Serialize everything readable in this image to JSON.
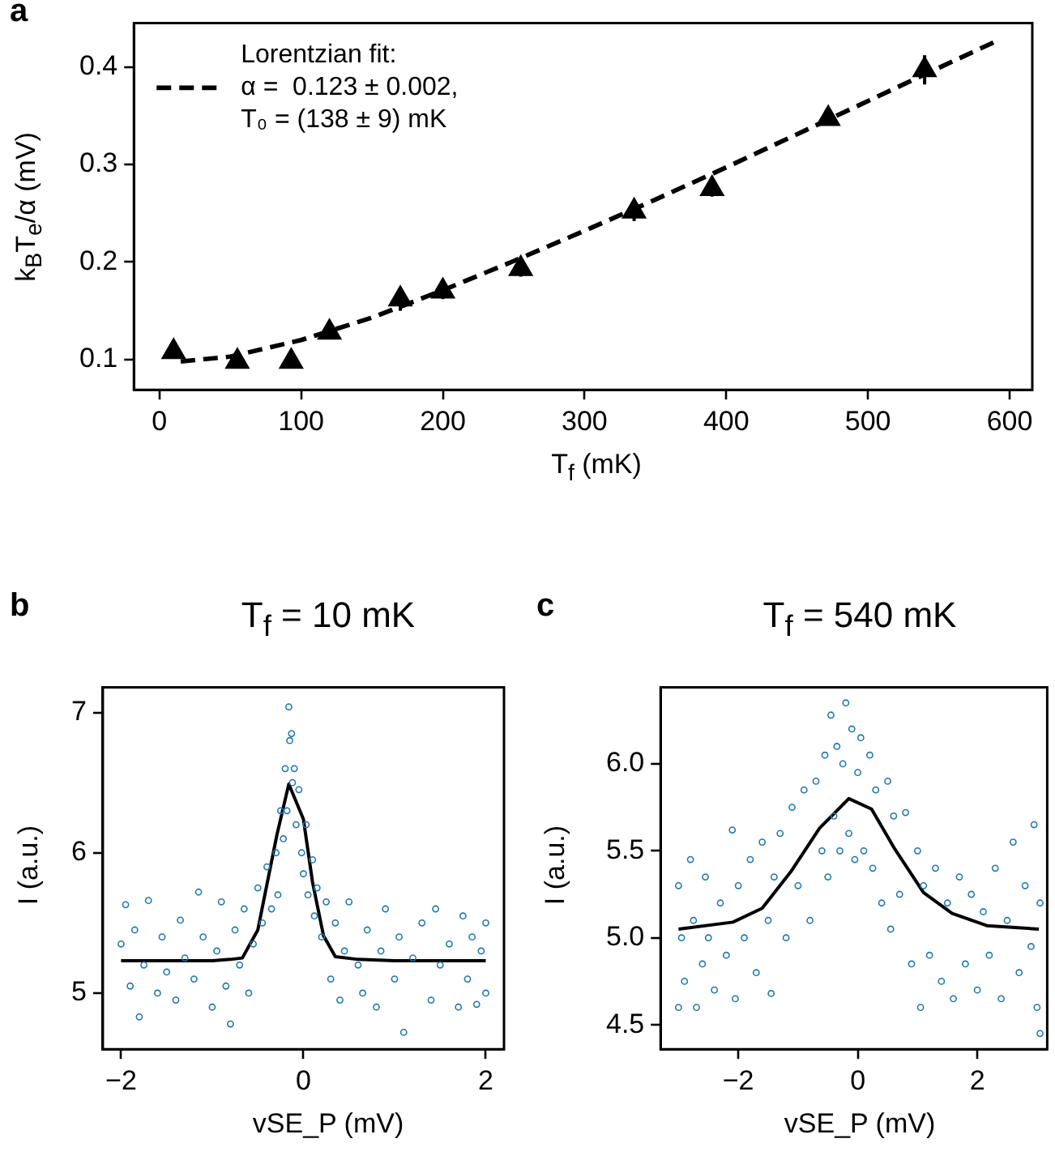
{
  "chart_data": [
    {
      "type": "scatter",
      "annotations": [
        "a"
      ],
      "xlabel": "T$_{f}$ (mK)",
      "ylabel": "k$_{B}$T$_{e}$/α (mV)",
      "xlim": [
        -18,
        616
      ],
      "ylim": [
        0.069,
        0.445
      ],
      "xticks": [
        0,
        100,
        200,
        300,
        400,
        500,
        600
      ],
      "yticks": [
        0.1,
        0.2,
        0.3,
        0.4
      ],
      "grid": false,
      "legend": "top left",
      "series": [
        {
          "type": "scatter",
          "color": "#000000",
          "marker": "triangle",
          "x": [
            10,
            55,
            93,
            120,
            170,
            200,
            255,
            335,
            390,
            472,
            540
          ],
          "values": [
            0.108,
            0.098,
            0.098,
            0.128,
            0.162,
            0.17,
            0.193,
            0.252,
            0.275,
            0.347,
            0.397
          ],
          "errors": [
            0.005,
            0.004,
            0.004,
            0.005,
            0.012,
            0.008,
            0.008,
            0.01,
            0.008,
            0.006,
            0.015
          ]
        },
        {
          "type": "line",
          "name": "Lorentzian fit:\nα =  0.123 ± 0.002,\nT₀ = (138 ± 9) mK",
          "color": "#000000",
          "marker": "none",
          "line_style": "dashed",
          "x": [
            15,
            50,
            100,
            150,
            200,
            250,
            300,
            350,
            400,
            450,
            500,
            550,
            590
          ],
          "values": [
            0.098,
            0.103,
            0.12,
            0.143,
            0.171,
            0.201,
            0.232,
            0.264,
            0.297,
            0.331,
            0.365,
            0.399,
            0.426
          ]
        }
      ]
    },
    {
      "type": "scatter",
      "title": "T$_{f}$ = 10 mK",
      "annotations": [
        "b"
      ],
      "xlabel": "vSE_P (mV)",
      "ylabel": "I (a.u.)",
      "xlim": [
        -2.2,
        2.2
      ],
      "ylim": [
        4.6,
        7.18
      ],
      "xticks": [
        {
          "value": -2,
          "label": "−2"
        },
        0,
        2
      ],
      "yticks": [
        5,
        6,
        7
      ],
      "grid": false,
      "series": [
        {
          "type": "scatter",
          "color": "#1f77b4",
          "marker": "circle",
          "x": [
            -2.0,
            -1.95,
            -1.9,
            -1.85,
            -1.8,
            -1.75,
            -1.7,
            -1.6,
            -1.55,
            -1.5,
            -1.4,
            -1.35,
            -1.3,
            -1.2,
            -1.15,
            -1.1,
            -1.0,
            -0.95,
            -0.9,
            -0.85,
            -0.8,
            -0.75,
            -0.7,
            -0.65,
            -0.6,
            -0.55,
            -0.5,
            -0.45,
            -0.4,
            -0.35,
            -0.3,
            -0.28,
            -0.25,
            -0.22,
            -0.2,
            -0.18,
            -0.16,
            -0.15,
            -0.13,
            -0.12,
            -0.1,
            -0.08,
            -0.05,
            -0.02,
            0.0,
            0.03,
            0.05,
            0.1,
            0.12,
            0.15,
            0.2,
            0.25,
            0.3,
            0.35,
            0.4,
            0.45,
            0.5,
            0.6,
            0.65,
            0.7,
            0.8,
            0.85,
            0.9,
            1.0,
            1.05,
            1.1,
            1.2,
            1.3,
            1.4,
            1.45,
            1.5,
            1.6,
            1.7,
            1.75,
            1.8,
            1.85,
            1.9,
            1.95,
            2.0,
            2.0
          ],
          "values": [
            5.35,
            5.63,
            5.05,
            5.45,
            4.83,
            5.2,
            5.66,
            5.0,
            5.4,
            5.15,
            4.95,
            5.52,
            5.25,
            5.1,
            5.72,
            5.4,
            4.9,
            5.3,
            5.65,
            5.05,
            4.78,
            5.45,
            5.2,
            5.6,
            5.0,
            5.35,
            5.75,
            5.5,
            5.9,
            5.6,
            6.0,
            5.7,
            6.3,
            6.1,
            6.6,
            6.3,
            7.04,
            6.8,
            6.85,
            6.5,
            6.6,
            6.2,
            6.45,
            6.0,
            5.85,
            6.2,
            5.7,
            5.95,
            5.55,
            5.75,
            5.4,
            5.65,
            5.1,
            5.5,
            4.95,
            5.3,
            5.65,
            5.2,
            5.0,
            5.45,
            4.9,
            5.3,
            5.6,
            5.1,
            5.4,
            4.72,
            5.25,
            5.5,
            4.95,
            5.6,
            5.2,
            5.35,
            4.9,
            5.55,
            5.1,
            5.4,
            4.92,
            5.3,
            5.5,
            5.0
          ]
        },
        {
          "type": "line",
          "color": "#000000",
          "marker": "none",
          "line_style": "solid",
          "x": [
            -2,
            -1,
            -0.8,
            -0.67,
            -0.5,
            -0.42,
            -0.29,
            -0.16,
            0,
            0.1,
            0.22,
            0.35,
            0.6,
            1,
            2
          ],
          "values": [
            5.23,
            5.23,
            5.24,
            5.25,
            5.45,
            5.71,
            6.13,
            6.49,
            6.24,
            5.79,
            5.41,
            5.26,
            5.24,
            5.23,
            5.23
          ]
        }
      ]
    },
    {
      "type": "scatter",
      "title": "T$_{f}$ = 540 mK",
      "annotations": [
        "c"
      ],
      "xlabel": "vSE_P (mV)",
      "ylabel": "I (a.u.)",
      "xlim": [
        -3.3,
        3.17
      ],
      "ylim": [
        4.36,
        6.44
      ],
      "xticks": [
        {
          "value": -2,
          "label": "−2"
        },
        0,
        2
      ],
      "yticks": [
        4.5,
        {
          "value": 5,
          "label": "5.0"
        },
        5.5,
        {
          "value": 6,
          "label": "6.0"
        }
      ],
      "grid": false,
      "series": [
        {
          "type": "scatter",
          "color": "#1f77b4",
          "marker": "circle",
          "x": [
            -3.0,
            -3.0,
            -2.95,
            -2.9,
            -2.8,
            -2.75,
            -2.7,
            -2.6,
            -2.55,
            -2.5,
            -2.4,
            -2.3,
            -2.2,
            -2.1,
            -2.05,
            -2.0,
            -1.9,
            -1.8,
            -1.7,
            -1.6,
            -1.5,
            -1.45,
            -1.4,
            -1.3,
            -1.2,
            -1.1,
            -1.0,
            -0.9,
            -0.8,
            -0.7,
            -0.6,
            -0.55,
            -0.5,
            -0.45,
            -0.4,
            -0.35,
            -0.3,
            -0.25,
            -0.2,
            -0.15,
            -0.1,
            -0.05,
            0.0,
            0.05,
            0.1,
            0.2,
            0.25,
            0.3,
            0.4,
            0.5,
            0.55,
            0.6,
            0.7,
            0.8,
            0.9,
            1.0,
            1.05,
            1.1,
            1.2,
            1.3,
            1.4,
            1.5,
            1.6,
            1.7,
            1.8,
            1.9,
            2.0,
            2.1,
            2.2,
            2.3,
            2.4,
            2.5,
            2.6,
            2.7,
            2.8,
            2.9,
            2.95,
            3.0,
            3.05,
            3.05
          ],
          "values": [
            4.6,
            5.3,
            5.0,
            4.75,
            5.45,
            5.1,
            4.6,
            4.85,
            5.35,
            5.0,
            4.7,
            5.2,
            4.9,
            5.62,
            4.65,
            5.3,
            5.0,
            5.45,
            4.8,
            5.55,
            5.1,
            4.68,
            5.35,
            5.6,
            5.0,
            5.75,
            5.3,
            5.85,
            5.1,
            5.9,
            5.5,
            6.05,
            5.35,
            6.28,
            5.7,
            6.1,
            5.5,
            6.0,
            6.35,
            5.6,
            6.2,
            5.45,
            5.95,
            6.15,
            5.5,
            6.05,
            5.4,
            5.85,
            5.2,
            5.9,
            5.05,
            5.7,
            5.25,
            5.72,
            4.85,
            5.5,
            4.6,
            5.3,
            4.9,
            5.4,
            4.75,
            5.2,
            4.65,
            5.35,
            4.85,
            5.25,
            4.7,
            5.15,
            4.9,
            5.4,
            4.65,
            5.1,
            5.55,
            4.8,
            5.3,
            4.95,
            5.65,
            4.6,
            4.45,
            5.2
          ]
        },
        {
          "type": "line",
          "color": "#000000",
          "marker": "none",
          "line_style": "solid",
          "x": [
            -3.0,
            -2.09,
            -1.6,
            -1.12,
            -0.64,
            -0.15,
            0.23,
            0.62,
            1.1,
            1.58,
            2.16,
            3.03
          ],
          "values": [
            5.05,
            5.09,
            5.17,
            5.38,
            5.63,
            5.8,
            5.74,
            5.51,
            5.26,
            5.14,
            5.07,
            5.05
          ]
        }
      ]
    }
  ]
}
